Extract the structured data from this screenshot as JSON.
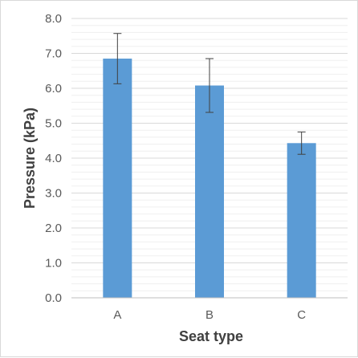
{
  "chart_data": {
    "type": "bar",
    "title": "",
    "xlabel": "Seat type",
    "ylabel": "Pressure (kPa)",
    "categories": [
      "A",
      "B",
      "C"
    ],
    "values": [
      6.85,
      6.08,
      4.43
    ],
    "error": [
      0.72,
      0.77,
      0.32
    ],
    "ylim": [
      0,
      8
    ],
    "yticks": [
      "0.0",
      "1.0",
      "2.0",
      "3.0",
      "4.0",
      "5.0",
      "6.0",
      "7.0",
      "8.0"
    ],
    "grid": true,
    "bar_color": "#5b9bd5",
    "error_color": "#404040",
    "grid_color": "#d9d9d9"
  }
}
